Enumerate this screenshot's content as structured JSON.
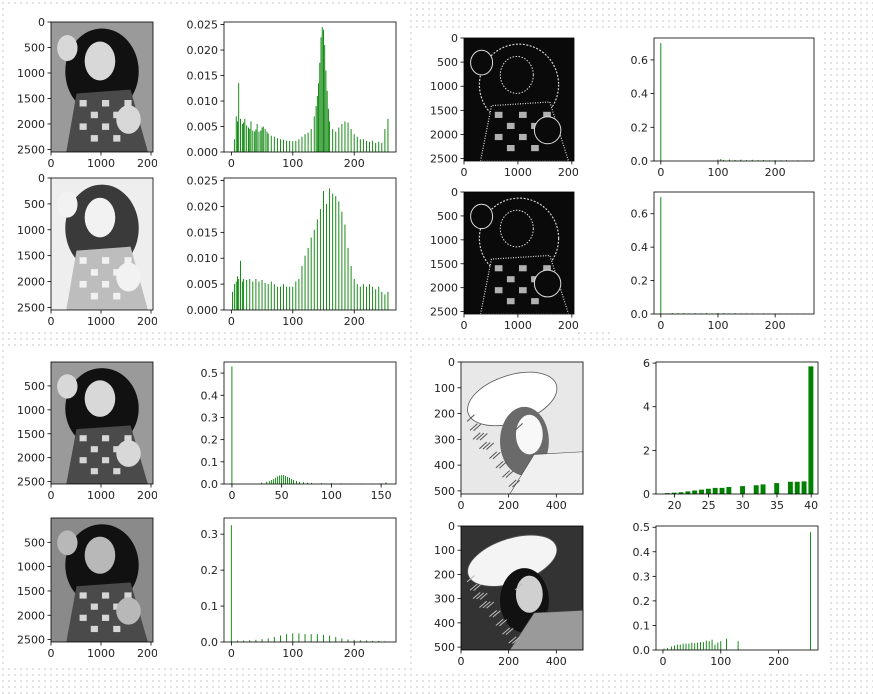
{
  "colors": {
    "bar": "#008000",
    "axis": "#000000",
    "dark": "#1a1a1a",
    "light": "#d9d9d9"
  },
  "chart_data": [
    {
      "id": "p1-img1",
      "type": "image",
      "xlim": [
        0,
        2040
      ],
      "ylim": [
        0,
        2550
      ],
      "xticks": [
        "0",
        "1000",
        "2000"
      ],
      "yticks": [
        "0",
        "500",
        "1000",
        "1500",
        "2000",
        "2500"
      ],
      "tone": "normal"
    },
    {
      "id": "p1-hist1",
      "type": "bar",
      "xlim": [
        -12,
        268
      ],
      "ylim": [
        0,
        0.0255
      ],
      "xticks": [
        "0",
        "100",
        "200"
      ],
      "yticks": [
        "0.000",
        "0.005",
        "0.010",
        "0.015",
        "0.020",
        "0.025"
      ],
      "points": [
        [
          5,
          0.0025
        ],
        [
          8,
          0.007
        ],
        [
          10,
          0.006
        ],
        [
          12,
          0.0135
        ],
        [
          15,
          0.0065
        ],
        [
          18,
          0.0055
        ],
        [
          20,
          0.0058
        ],
        [
          22,
          0.0065
        ],
        [
          25,
          0.0052
        ],
        [
          28,
          0.0048
        ],
        [
          30,
          0.0045
        ],
        [
          32,
          0.006
        ],
        [
          35,
          0.0042
        ],
        [
          38,
          0.004
        ],
        [
          40,
          0.0044
        ],
        [
          42,
          0.0055
        ],
        [
          45,
          0.004
        ],
        [
          48,
          0.0042
        ],
        [
          50,
          0.0048
        ],
        [
          52,
          0.005
        ],
        [
          55,
          0.0045
        ],
        [
          58,
          0.004
        ],
        [
          60,
          0.0036
        ],
        [
          65,
          0.0032
        ],
        [
          70,
          0.003
        ],
        [
          75,
          0.0027
        ],
        [
          80,
          0.0025
        ],
        [
          85,
          0.0024
        ],
        [
          90,
          0.0022
        ],
        [
          95,
          0.0022
        ],
        [
          100,
          0.0021
        ],
        [
          105,
          0.0022
        ],
        [
          110,
          0.0025
        ],
        [
          115,
          0.003
        ],
        [
          120,
          0.0035
        ],
        [
          125,
          0.0038
        ],
        [
          130,
          0.0045
        ],
        [
          135,
          0.007
        ],
        [
          138,
          0.009
        ],
        [
          140,
          0.011
        ],
        [
          142,
          0.0135
        ],
        [
          144,
          0.0175
        ],
        [
          146,
          0.0225
        ],
        [
          148,
          0.0245
        ],
        [
          150,
          0.024
        ],
        [
          152,
          0.021
        ],
        [
          154,
          0.016
        ],
        [
          156,
          0.012
        ],
        [
          158,
          0.0085
        ],
        [
          160,
          0.006
        ],
        [
          165,
          0.0045
        ],
        [
          170,
          0.004
        ],
        [
          175,
          0.0048
        ],
        [
          180,
          0.0055
        ],
        [
          185,
          0.006
        ],
        [
          190,
          0.0058
        ],
        [
          195,
          0.0045
        ],
        [
          200,
          0.0035
        ],
        [
          205,
          0.003
        ],
        [
          210,
          0.0025
        ],
        [
          215,
          0.0025
        ],
        [
          220,
          0.0022
        ],
        [
          225,
          0.002
        ],
        [
          230,
          0.0022
        ],
        [
          235,
          0.0018
        ],
        [
          240,
          0.002
        ],
        [
          245,
          0.0018
        ],
        [
          250,
          0.0045
        ],
        [
          255,
          0.0065
        ]
      ]
    },
    {
      "id": "p1-img2",
      "type": "image",
      "xlim": [
        0,
        2040
      ],
      "ylim": [
        0,
        2550
      ],
      "xticks": [
        "0",
        "1000",
        "2000"
      ],
      "yticks": [
        "0",
        "500",
        "1000",
        "1500",
        "2000",
        "2500"
      ],
      "tone": "light"
    },
    {
      "id": "p1-hist2",
      "type": "bar",
      "xlim": [
        -12,
        268
      ],
      "ylim": [
        0,
        0.0255
      ],
      "xticks": [
        "0",
        "100",
        "200"
      ],
      "yticks": [
        "0.000",
        "0.005",
        "0.010",
        "0.015",
        "0.020",
        "0.025"
      ],
      "points": [
        [
          2,
          0.0035
        ],
        [
          5,
          0.005
        ],
        [
          8,
          0.0055
        ],
        [
          10,
          0.0065
        ],
        [
          12,
          0.006
        ],
        [
          15,
          0.0095
        ],
        [
          18,
          0.0055
        ],
        [
          20,
          0.006
        ],
        [
          25,
          0.0058
        ],
        [
          30,
          0.006
        ],
        [
          35,
          0.0055
        ],
        [
          40,
          0.006
        ],
        [
          45,
          0.0055
        ],
        [
          50,
          0.0058
        ],
        [
          55,
          0.0052
        ],
        [
          60,
          0.005
        ],
        [
          65,
          0.0055
        ],
        [
          70,
          0.005
        ],
        [
          75,
          0.0045
        ],
        [
          80,
          0.0045
        ],
        [
          85,
          0.005
        ],
        [
          90,
          0.0045
        ],
        [
          95,
          0.0045
        ],
        [
          100,
          0.0045
        ],
        [
          105,
          0.0055
        ],
        [
          110,
          0.006
        ],
        [
          115,
          0.0085
        ],
        [
          120,
          0.0105
        ],
        [
          125,
          0.012
        ],
        [
          130,
          0.014
        ],
        [
          135,
          0.0155
        ],
        [
          140,
          0.0175
        ],
        [
          145,
          0.0195
        ],
        [
          150,
          0.023
        ],
        [
          155,
          0.0205
        ],
        [
          160,
          0.0235
        ],
        [
          165,
          0.0225
        ],
        [
          170,
          0.022
        ],
        [
          175,
          0.021
        ],
        [
          180,
          0.019
        ],
        [
          185,
          0.0165
        ],
        [
          190,
          0.012
        ],
        [
          195,
          0.0085
        ],
        [
          200,
          0.006
        ],
        [
          205,
          0.005
        ],
        [
          210,
          0.0045
        ],
        [
          215,
          0.005
        ],
        [
          220,
          0.0045
        ],
        [
          225,
          0.005
        ],
        [
          230,
          0.0045
        ],
        [
          235,
          0.004
        ],
        [
          240,
          0.0045
        ],
        [
          245,
          0.0035
        ],
        [
          250,
          0.003
        ],
        [
          255,
          0.0035
        ]
      ]
    },
    {
      "id": "p2-img1",
      "type": "image",
      "xlim": [
        0,
        2040
      ],
      "ylim": [
        0,
        2550
      ],
      "xticks": [
        "0",
        "1000",
        "2000"
      ],
      "yticks": [
        "0",
        "500",
        "1000",
        "1500",
        "2000",
        "2500"
      ],
      "tone": "edges"
    },
    {
      "id": "p2-hist1",
      "type": "bar",
      "xlim": [
        -12,
        268
      ],
      "ylim": [
        0,
        0.73
      ],
      "xticks": [
        "0",
        "100",
        "200"
      ],
      "yticks": [
        "0.0",
        "0.2",
        "0.4",
        "0.6"
      ],
      "points": [
        [
          0,
          0.7
        ],
        [
          100,
          0.009
        ],
        [
          105,
          0.012
        ],
        [
          110,
          0.007
        ],
        [
          120,
          0.009
        ],
        [
          130,
          0.006
        ],
        [
          140,
          0.008
        ],
        [
          150,
          0.005
        ],
        [
          160,
          0.007
        ],
        [
          170,
          0.005
        ],
        [
          180,
          0.006
        ],
        [
          190,
          0.004
        ],
        [
          200,
          0.005
        ],
        [
          210,
          0.004
        ],
        [
          220,
          0.005
        ],
        [
          230,
          0.003
        ],
        [
          240,
          0.004
        ],
        [
          250,
          0.003
        ],
        [
          255,
          0.003
        ]
      ]
    },
    {
      "id": "p2-img2",
      "type": "image",
      "xlim": [
        0,
        2040
      ],
      "ylim": [
        0,
        2550
      ],
      "xticks": [
        "0",
        "1000",
        "2000"
      ],
      "yticks": [
        "0",
        "500",
        "1000",
        "1500",
        "2000",
        "2500"
      ],
      "tone": "edges"
    },
    {
      "id": "p2-hist2",
      "type": "bar",
      "xlim": [
        -12,
        268
      ],
      "ylim": [
        0,
        0.73
      ],
      "xticks": [
        "0",
        "100",
        "200"
      ],
      "yticks": [
        "0.0",
        "0.2",
        "0.4",
        "0.6"
      ],
      "points": [
        [
          0,
          0.7
        ],
        [
          20,
          0.006
        ],
        [
          30,
          0.005
        ],
        [
          40,
          0.005
        ],
        [
          50,
          0.004
        ],
        [
          60,
          0.005
        ],
        [
          70,
          0.004
        ],
        [
          80,
          0.005
        ],
        [
          90,
          0.004
        ],
        [
          100,
          0.006
        ],
        [
          110,
          0.005
        ],
        [
          120,
          0.004
        ],
        [
          130,
          0.005
        ],
        [
          140,
          0.004
        ],
        [
          150,
          0.004
        ],
        [
          160,
          0.004
        ],
        [
          170,
          0.003
        ],
        [
          180,
          0.004
        ],
        [
          190,
          0.003
        ],
        [
          200,
          0.003
        ],
        [
          210,
          0.003
        ],
        [
          220,
          0.003
        ],
        [
          230,
          0.003
        ],
        [
          240,
          0.002
        ],
        [
          250,
          0.002
        ]
      ]
    },
    {
      "id": "p3-img1",
      "type": "image",
      "xlim": [
        0,
        2040
      ],
      "ylim": [
        0,
        2550
      ],
      "xticks": [
        "0",
        "1000",
        "2000"
      ],
      "yticks": [
        "500",
        "1000",
        "1500",
        "2000",
        "2500"
      ],
      "tone": "normal"
    },
    {
      "id": "p3-hist1",
      "type": "bar",
      "xlim": [
        -8,
        165
      ],
      "ylim": [
        0,
        0.55
      ],
      "xticks": [
        "0",
        "50",
        "100",
        "150"
      ],
      "yticks": [
        "0.0",
        "0.1",
        "0.2",
        "0.3",
        "0.4",
        "0.5"
      ],
      "points": [
        [
          0,
          0.53
        ],
        [
          30,
          0.006
        ],
        [
          35,
          0.01
        ],
        [
          38,
          0.014
        ],
        [
          40,
          0.018
        ],
        [
          42,
          0.022
        ],
        [
          44,
          0.028
        ],
        [
          46,
          0.034
        ],
        [
          48,
          0.038
        ],
        [
          50,
          0.04
        ],
        [
          52,
          0.04
        ],
        [
          54,
          0.036
        ],
        [
          56,
          0.032
        ],
        [
          58,
          0.028
        ],
        [
          60,
          0.022
        ],
        [
          62,
          0.018
        ],
        [
          65,
          0.014
        ],
        [
          68,
          0.01
        ],
        [
          72,
          0.008
        ],
        [
          76,
          0.006
        ],
        [
          80,
          0.005
        ],
        [
          90,
          0.004
        ],
        [
          100,
          0.004
        ],
        [
          110,
          0.003
        ],
        [
          120,
          0.002
        ],
        [
          130,
          0.002
        ],
        [
          140,
          0.002
        ],
        [
          150,
          0.003
        ],
        [
          155,
          0.008
        ]
      ]
    },
    {
      "id": "p3-img2",
      "type": "image",
      "xlim": [
        0,
        2040
      ],
      "ylim": [
        0,
        2550
      ],
      "xticks": [
        "0",
        "1000",
        "2000"
      ],
      "yticks": [
        "500",
        "1000",
        "1500",
        "2000",
        "2500"
      ],
      "tone": "dark"
    },
    {
      "id": "p3-hist2",
      "type": "bar",
      "xlim": [
        -12,
        268
      ],
      "ylim": [
        0,
        0.345
      ],
      "xticks": [
        "0",
        "100",
        "200"
      ],
      "yticks": [
        "0.0",
        "0.1",
        "0.2",
        "0.3"
      ],
      "points": [
        [
          0,
          0.325
        ],
        [
          10,
          0.004
        ],
        [
          20,
          0.004
        ],
        [
          30,
          0.005
        ],
        [
          40,
          0.006
        ],
        [
          50,
          0.008
        ],
        [
          60,
          0.01
        ],
        [
          70,
          0.014
        ],
        [
          80,
          0.018
        ],
        [
          90,
          0.022
        ],
        [
          100,
          0.024
        ],
        [
          110,
          0.024
        ],
        [
          120,
          0.022
        ],
        [
          130,
          0.022
        ],
        [
          140,
          0.022
        ],
        [
          150,
          0.02
        ],
        [
          160,
          0.018
        ],
        [
          170,
          0.014
        ],
        [
          180,
          0.01
        ],
        [
          190,
          0.007
        ],
        [
          200,
          0.006
        ],
        [
          210,
          0.005
        ],
        [
          220,
          0.004
        ],
        [
          230,
          0.003
        ],
        [
          240,
          0.003
        ],
        [
          250,
          0.002
        ]
      ]
    },
    {
      "id": "p4-img1",
      "type": "image",
      "xlim": [
        0,
        512
      ],
      "ylim": [
        0,
        512
      ],
      "xticks": [
        "0",
        "200",
        "400"
      ],
      "yticks": [
        "0",
        "100",
        "200",
        "300",
        "400",
        "500"
      ],
      "tone": "light"
    },
    {
      "id": "p4-hist1",
      "type": "bar",
      "xlim": [
        17.3,
        41
      ],
      "ylim": [
        0,
        6.05
      ],
      "xticks": [
        "20",
        "25",
        "30",
        "35",
        "40"
      ],
      "yticks": [
        "0",
        "2",
        "4",
        "6"
      ],
      "points": [
        [
          19,
          0.04
        ],
        [
          20,
          0.06
        ],
        [
          21,
          0.08
        ],
        [
          22,
          0.12
        ],
        [
          23,
          0.16
        ],
        [
          24,
          0.2
        ],
        [
          25,
          0.24
        ],
        [
          26,
          0.28
        ],
        [
          27,
          0.28
        ],
        [
          28,
          0.32
        ],
        [
          30,
          0.36
        ],
        [
          32,
          0.4
        ],
        [
          33,
          0.44
        ],
        [
          35,
          0.5
        ],
        [
          37,
          0.56
        ],
        [
          38,
          0.56
        ],
        [
          39,
          0.58
        ],
        [
          40,
          5.85
        ]
      ]
    },
    {
      "id": "p4-img2",
      "type": "image",
      "xlim": [
        0,
        512
      ],
      "ylim": [
        0,
        512
      ],
      "xticks": [
        "0",
        "200",
        "400"
      ],
      "yticks": [
        "0",
        "100",
        "200",
        "300",
        "400",
        "500"
      ],
      "tone": "dark"
    },
    {
      "id": "p4-hist2",
      "type": "bar",
      "xlim": [
        -12,
        268
      ],
      "ylim": [
        0,
        0.505
      ],
      "xticks": [
        "0",
        "100",
        "200"
      ],
      "yticks": [
        "0.0",
        "0.1",
        "0.2",
        "0.3",
        "0.4",
        "0.5"
      ],
      "points": [
        [
          2,
          0.006
        ],
        [
          8,
          0.008
        ],
        [
          15,
          0.014
        ],
        [
          20,
          0.018
        ],
        [
          25,
          0.022
        ],
        [
          30,
          0.022
        ],
        [
          35,
          0.026
        ],
        [
          40,
          0.026
        ],
        [
          45,
          0.026
        ],
        [
          50,
          0.03
        ],
        [
          55,
          0.028
        ],
        [
          60,
          0.03
        ],
        [
          65,
          0.032
        ],
        [
          70,
          0.032
        ],
        [
          75,
          0.038
        ],
        [
          80,
          0.036
        ],
        [
          85,
          0.042
        ],
        [
          90,
          0.022
        ],
        [
          95,
          0.03
        ],
        [
          100,
          0.036
        ],
        [
          110,
          0.046
        ],
        [
          130,
          0.036
        ],
        [
          255,
          0.48
        ]
      ]
    }
  ]
}
